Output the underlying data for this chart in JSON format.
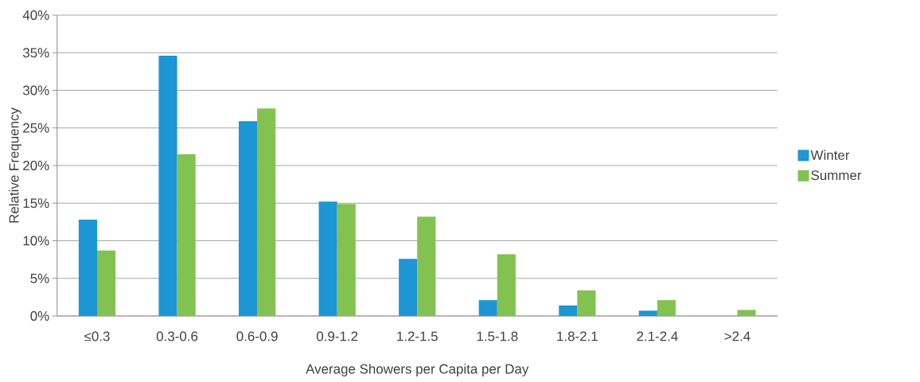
{
  "chart_data": {
    "type": "bar",
    "xlabel": "Average Showers per Capita per Day",
    "ylabel": "Relative Frequency",
    "categories": [
      "≤0.3",
      "0.3-0.6",
      "0.6-0.9",
      "0.9-1.2",
      "1.2-1.5",
      "1.5-1.8",
      "1.8-2.1",
      "2.1-2.4",
      ">2.4"
    ],
    "series": [
      {
        "name": "Winter",
        "color": "#1c96d4",
        "values": [
          12.8,
          34.6,
          25.9,
          15.2,
          7.6,
          2.1,
          1.4,
          0.7,
          0
        ]
      },
      {
        "name": "Summer",
        "color": "#82c250",
        "values": [
          8.7,
          21.5,
          27.6,
          14.9,
          13.2,
          8.2,
          3.4,
          2.1,
          0.8
        ]
      }
    ],
    "ylim": [
      0,
      40
    ],
    "yticks": [
      {
        "value": 0,
        "label": "0%"
      },
      {
        "value": 5,
        "label": "5%"
      },
      {
        "value": 10,
        "label": "10%"
      },
      {
        "value": 15,
        "label": "15%"
      },
      {
        "value": 20,
        "label": "20%"
      },
      {
        "value": 25,
        "label": "25%"
      },
      {
        "value": 30,
        "label": "30%"
      },
      {
        "value": 35,
        "label": "35%"
      },
      {
        "value": 40,
        "label": "40%"
      }
    ],
    "grid": "y",
    "legend": "right"
  }
}
